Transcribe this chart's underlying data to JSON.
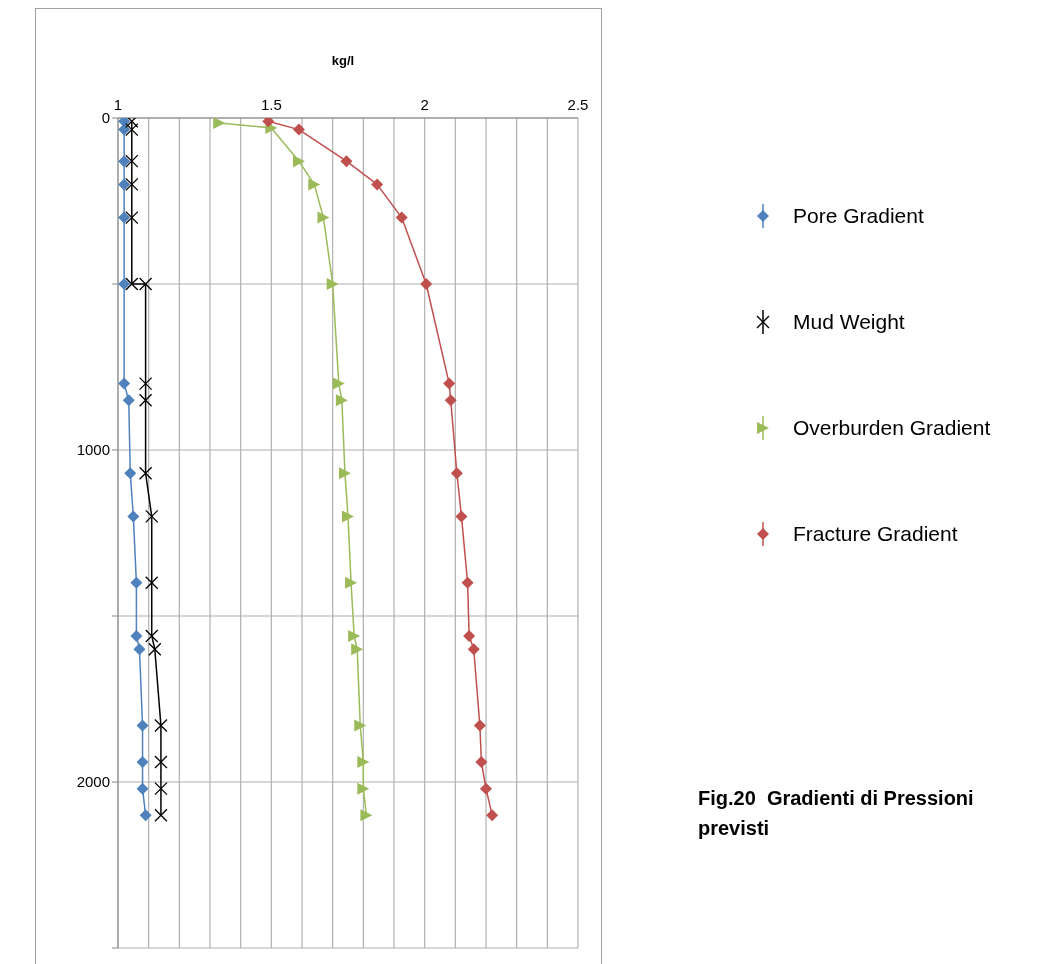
{
  "chart_data": {
    "type": "line",
    "title": "Fig.20  Gradienti di Pressioni previsti",
    "xlabel": "kg/l",
    "xlim": [
      1,
      2.5
    ],
    "xticks": [
      1,
      {
        "value": 1.1,
        "label": null
      },
      {
        "value": 1.2,
        "label": null
      },
      {
        "value": 1.3,
        "label": null
      },
      {
        "value": 1.4,
        "label": null
      },
      1.5,
      {
        "value": 1.6,
        "label": null
      },
      {
        "value": 1.7,
        "label": null
      },
      {
        "value": 1.8,
        "label": null
      },
      {
        "value": 1.9,
        "label": null
      },
      2,
      {
        "value": 2.1,
        "label": null
      },
      {
        "value": 2.2,
        "label": null
      },
      {
        "value": 2.3,
        "label": null
      },
      {
        "value": 2.4,
        "label": null
      },
      2.5
    ],
    "ylim": [
      2500,
      0
    ],
    "yticks": [
      0,
      {
        "value": 500,
        "label": null
      },
      1000,
      {
        "value": 1500,
        "label": null
      },
      2000,
      {
        "value": 2500,
        "label": null
      }
    ],
    "grid": true,
    "legend": "right",
    "series": [
      {
        "name": "Pore Gradient",
        "color": "#4f81bd",
        "marker": "diamond",
        "x": [
          1.02,
          1.02,
          1.02,
          1.02,
          1.02,
          1.02,
          1.02,
          1.035,
          1.04,
          1.05,
          1.06,
          1.06,
          1.07,
          1.08,
          1.08,
          1.08,
          1.09
        ],
        "values": [
          10,
          35,
          130,
          200,
          300,
          500,
          800,
          850,
          1070,
          1200,
          1400,
          1560,
          1600,
          1830,
          1940,
          2020,
          2100
        ]
      },
      {
        "name": "Mud Weight",
        "color": "#000000",
        "marker": "cross",
        "x": [
          1.045,
          1.045,
          1.045,
          1.045,
          1.045,
          1.045,
          1.09,
          1.09,
          1.09,
          1.09,
          1.11,
          1.11,
          1.11,
          1.12,
          1.14,
          1.14,
          1.14,
          1.14
        ],
        "values": [
          10,
          35,
          130,
          200,
          300,
          500,
          500,
          800,
          850,
          1070,
          1200,
          1400,
          1560,
          1600,
          1830,
          1940,
          2020,
          2100
        ]
      },
      {
        "name": "Overburden Gradient",
        "color": "#9bbb59",
        "marker": "triangle",
        "x": [
          1.33,
          1.5,
          1.59,
          1.64,
          1.67,
          1.7,
          1.72,
          1.73,
          1.74,
          1.75,
          1.76,
          1.77,
          1.78,
          1.79,
          1.8,
          1.8,
          1.81
        ],
        "values": [
          15,
          30,
          130,
          200,
          300,
          500,
          800,
          850,
          1070,
          1200,
          1400,
          1560,
          1600,
          1830,
          1940,
          2020,
          2100
        ]
      },
      {
        "name": "Fracture Gradient",
        "color": "#c0504d",
        "marker": "diamond",
        "x": [
          1.49,
          1.59,
          1.745,
          1.845,
          1.925,
          2.005,
          2.08,
          2.085,
          2.105,
          2.12,
          2.14,
          2.145,
          2.16,
          2.18,
          2.185,
          2.2,
          2.22
        ],
        "values": [
          10,
          35,
          130,
          200,
          300,
          500,
          800,
          850,
          1070,
          1200,
          1400,
          1560,
          1600,
          1830,
          1940,
          2020,
          2100
        ]
      }
    ]
  }
}
